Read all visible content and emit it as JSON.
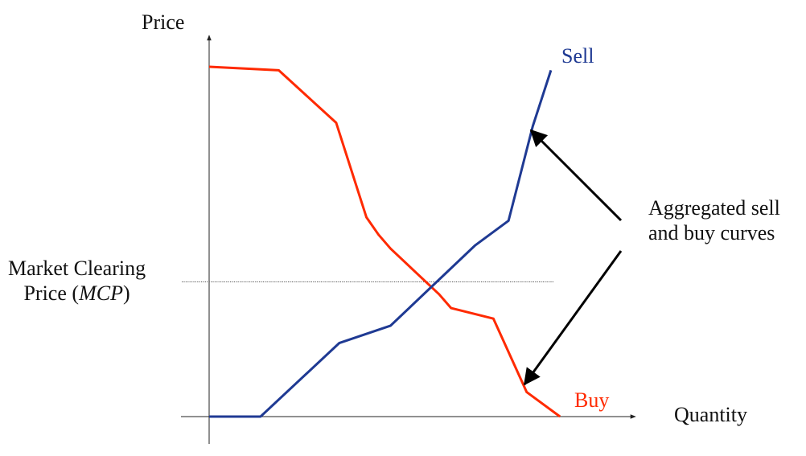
{
  "axes": {
    "y_label": "Price",
    "x_label": "Quantity"
  },
  "curves": {
    "sell": {
      "label": "Sell",
      "color": "#1f3a93",
      "points": [
        [
          0,
          0
        ],
        [
          1.7,
          0
        ],
        [
          4.3,
          0.21
        ],
        [
          6.0,
          0.26
        ],
        [
          8.8,
          0.49
        ],
        [
          9.9,
          0.56
        ],
        [
          10.7,
          0.83
        ],
        [
          11.3,
          0.99
        ]
      ]
    },
    "buy": {
      "label": "Buy",
      "color": "#ff2a00",
      "points": [
        [
          0,
          1.0
        ],
        [
          2.3,
          0.99
        ],
        [
          4.2,
          0.84
        ],
        [
          5.2,
          0.57
        ],
        [
          5.6,
          0.52
        ],
        [
          6.0,
          0.48
        ],
        [
          7.6,
          0.35
        ],
        [
          8.0,
          0.31
        ],
        [
          9.4,
          0.28
        ],
        [
          10.5,
          0.07
        ],
        [
          11.6,
          0.0
        ]
      ]
    }
  },
  "mcp": {
    "label_line1": "Market Clearing",
    "label_line2_prefix": "Price  (",
    "label_abbrev": "MCP",
    "label_line2_suffix": ")",
    "level": 0.385
  },
  "annotation": {
    "line1": "Aggregated sell",
    "line2": "and buy curves",
    "color": "#000000"
  }
}
